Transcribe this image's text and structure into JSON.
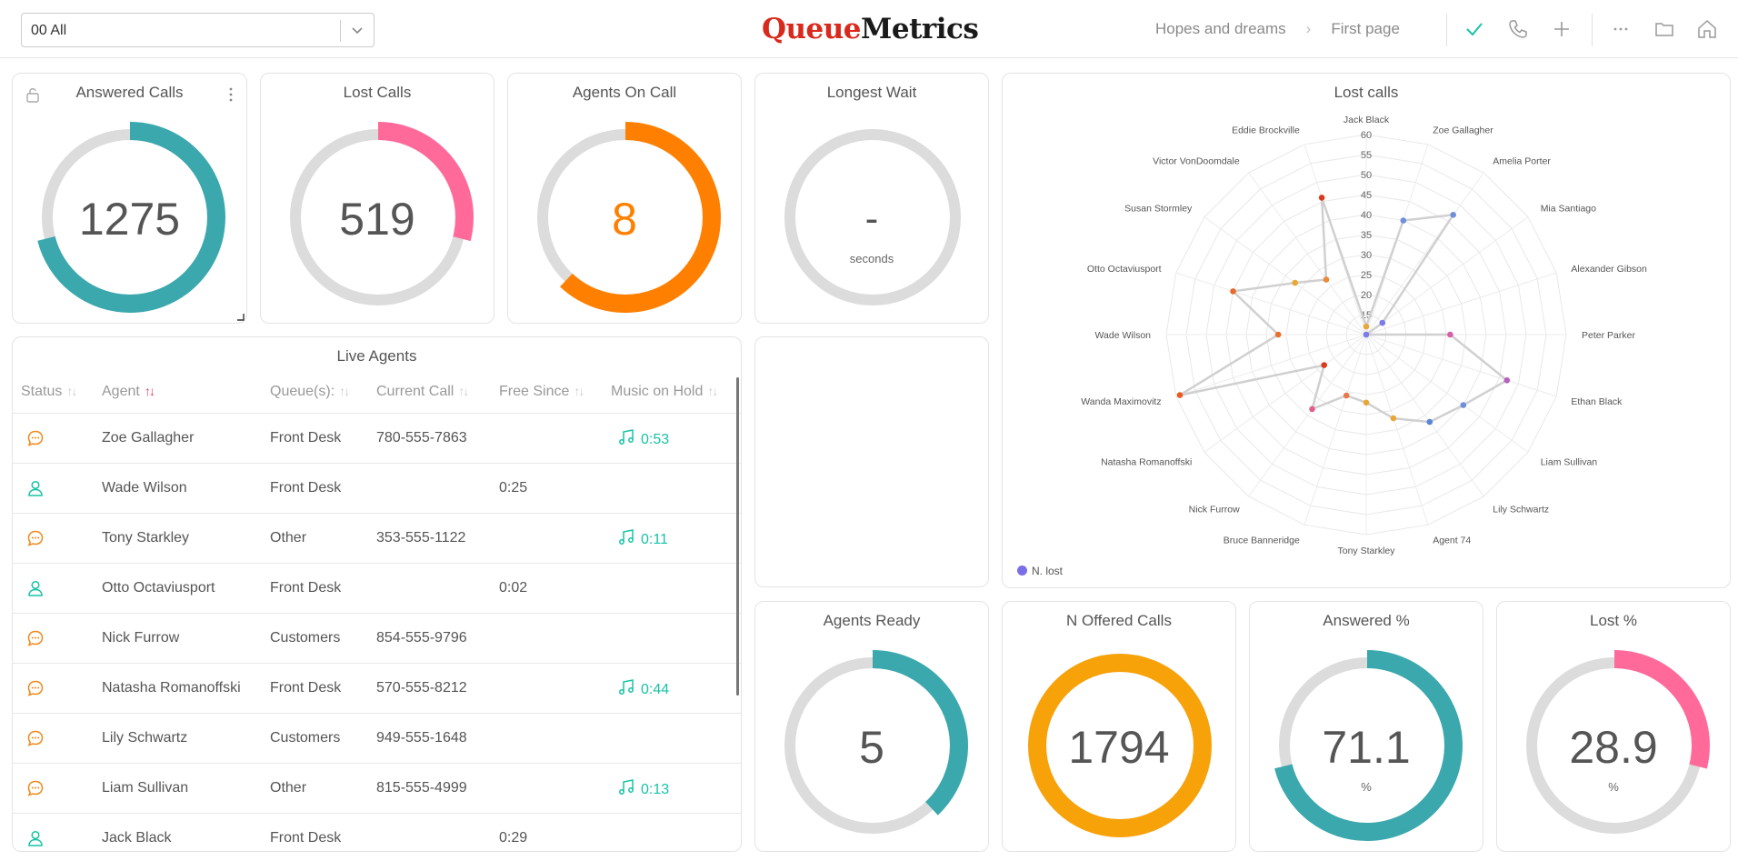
{
  "topbar": {
    "queue_select_value": "00 All",
    "logo_q": "Queue",
    "logo_m": "Metrics",
    "breadcrumb": [
      "Hopes and dreams",
      "First page"
    ]
  },
  "colors": {
    "teal": "#3ba8ae",
    "pink": "#ff6a9a",
    "orange": "#ff8000",
    "amber": "#f8a20a",
    "track": "#dcdcdc",
    "accent_green": "#17c3a6"
  },
  "gauges": {
    "answered_calls": {
      "title": "Answered Calls",
      "value": "1275",
      "fill": 0.71,
      "color": "#3ba8ae"
    },
    "lost_calls": {
      "title": "Lost Calls",
      "value": "519",
      "fill": 0.29,
      "color": "#ff6a9a"
    },
    "agents_on_call": {
      "title": "Agents On Call",
      "value": "8",
      "fill": 0.62,
      "color": "#ff8000"
    },
    "longest_wait": {
      "title": "Longest Wait",
      "value": "-",
      "unit": "seconds",
      "fill": 0,
      "color": "#3ba8ae"
    },
    "agents_ready": {
      "title": "Agents Ready",
      "value": "5",
      "fill": 0.38,
      "color": "#3ba8ae"
    },
    "offered_calls": {
      "title": "N Offered Calls",
      "value": "1794",
      "fill": 1.0,
      "color": "#f8a20a"
    },
    "answered_pct": {
      "title": "Answered %",
      "value": "71.1",
      "unit": "%",
      "fill": 0.711,
      "color": "#3ba8ae"
    },
    "lost_pct": {
      "title": "Lost %",
      "value": "28.9",
      "unit": "%",
      "fill": 0.289,
      "color": "#ff6a9a"
    }
  },
  "live_agents": {
    "title": "Live Agents",
    "columns": [
      "Status",
      "Agent",
      "Queue(s):",
      "Current Call",
      "Free Since",
      "Music on Hold"
    ],
    "rows": [
      {
        "status": "oncall",
        "agent": "Zoe Gallagher",
        "queue": "Front Desk",
        "call": "780-555-7863",
        "free": "",
        "moh": "0:53"
      },
      {
        "status": "free",
        "agent": "Wade Wilson",
        "queue": "Front Desk",
        "call": "",
        "free": "0:25",
        "moh": ""
      },
      {
        "status": "oncall",
        "agent": "Tony Starkley",
        "queue": "Other",
        "call": "353-555-1122",
        "free": "",
        "moh": "0:11"
      },
      {
        "status": "free",
        "agent": "Otto Octaviusport",
        "queue": "Front Desk",
        "call": "",
        "free": "0:02",
        "moh": ""
      },
      {
        "status": "oncall",
        "agent": "Nick Furrow",
        "queue": "Customers",
        "call": "854-555-9796",
        "free": "",
        "moh": ""
      },
      {
        "status": "oncall",
        "agent": "Natasha Romanoffski",
        "queue": "Front Desk",
        "call": "570-555-8212",
        "free": "",
        "moh": "0:44"
      },
      {
        "status": "oncall",
        "agent": "Lily Schwartz",
        "queue": "Customers",
        "call": "949-555-1648",
        "free": "",
        "moh": ""
      },
      {
        "status": "oncall",
        "agent": "Liam Sullivan",
        "queue": "Other",
        "call": "815-555-4999",
        "free": "",
        "moh": "0:13"
      },
      {
        "status": "free",
        "agent": "Jack Black",
        "queue": "Front Desk",
        "call": "",
        "free": "0:29",
        "moh": ""
      }
    ]
  },
  "chart_data": {
    "type": "radar",
    "title": "Lost calls",
    "categories": [
      "Jack Black",
      "Zoe Gallagher",
      "Amelia Porter",
      "Mia Santiago",
      "Alexander Gibson",
      "Peter Parker",
      "Ethan Black",
      "Liam Sullivan",
      "Lily Schwartz",
      "Agent 74",
      "Tony Starkley",
      "Bruce Banneridge",
      "Nick Furrow",
      "Natasha Romanoffski",
      "Wanda Maximovitz",
      "Wade Wilson",
      "Otto Octaviusport",
      "Susan Stormley",
      "Victor VonDoomdale",
      "Eddie Brockville"
    ],
    "ticks": [
      "15",
      "20",
      "25",
      "30",
      "35",
      "40",
      "45",
      "50",
      "55",
      "60"
    ],
    "rmin": 10,
    "rmax": 60,
    "series": [
      {
        "name": "N. lost",
        "values": [
          12,
          40,
          47,
          15,
          10,
          31,
          47,
          40,
          37,
          32,
          27,
          26,
          33,
          23,
          59,
          32,
          45,
          32,
          27,
          46
        ]
      }
    ],
    "point_colors": [
      "#e8a838",
      "#6f8fd8",
      "#6f8fd8",
      "#7b7bea",
      "#7b7bea",
      "#d65fa8",
      "#b85fc0",
      "#6f8fd8",
      "#5a85d8",
      "#e8a838",
      "#e8a838",
      "#e8784a",
      "#e06088",
      "#d83c1c",
      "#e85a20",
      "#e8702a",
      "#e86a2a",
      "#e8a838",
      "#e88a3a",
      "#d83c1c"
    ],
    "legend": "bottom-left"
  }
}
